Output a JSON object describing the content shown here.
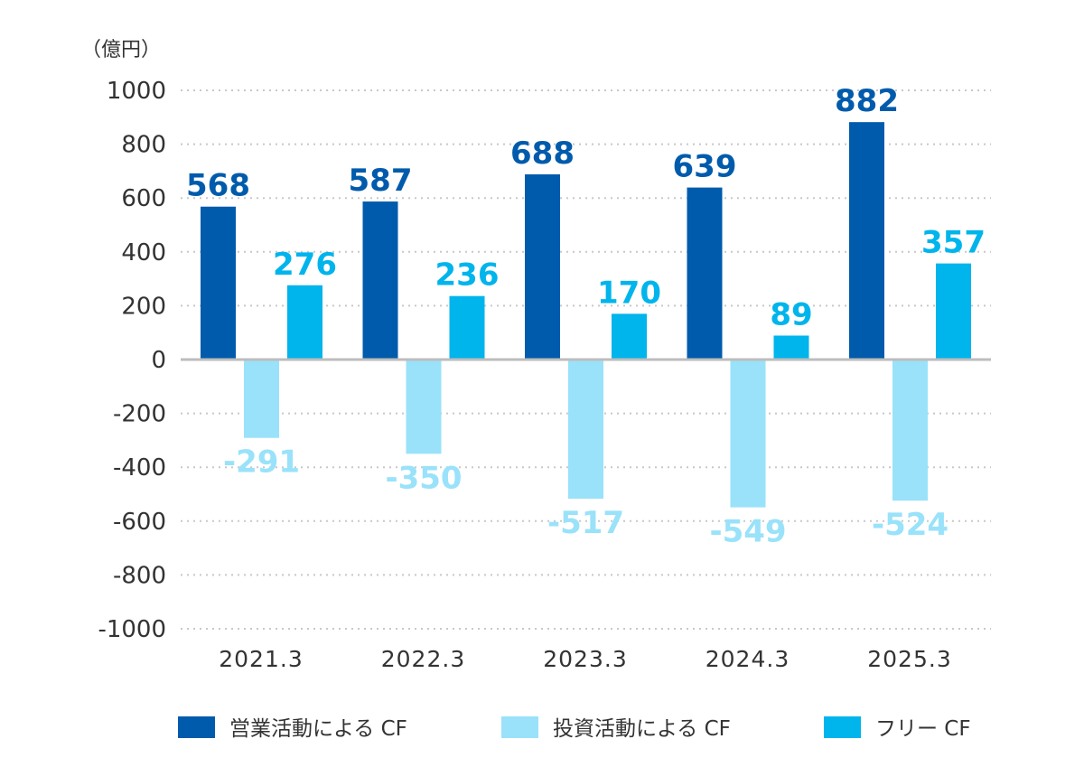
{
  "chart_data": {
    "type": "bar",
    "unit_label": "（億円）",
    "categories": [
      "2021.3",
      "2022.3",
      "2023.3",
      "2024.3",
      "2025.3"
    ],
    "series": [
      {
        "name": "営業活動による CF",
        "color": "#005BAC",
        "label_color": "#005BAC",
        "values": [
          568,
          587,
          688,
          639,
          882
        ]
      },
      {
        "name": "投資活動による CF",
        "color": "#99E2FA",
        "label_color": "#99E2FA",
        "values": [
          -291,
          -350,
          -517,
          -549,
          -524
        ]
      },
      {
        "name": "フリー CF",
        "color": "#00B4EC",
        "label_color": "#00B4EC",
        "values": [
          276,
          236,
          170,
          89,
          357
        ]
      }
    ],
    "y_ticks": [
      "1000",
      "800",
      "600",
      "400",
      "200",
      "0",
      "-200",
      "-400",
      "-600",
      "-800",
      "-1000"
    ],
    "ylim": [
      -1000,
      1000
    ],
    "grid": true,
    "legend_position": "bottom"
  }
}
